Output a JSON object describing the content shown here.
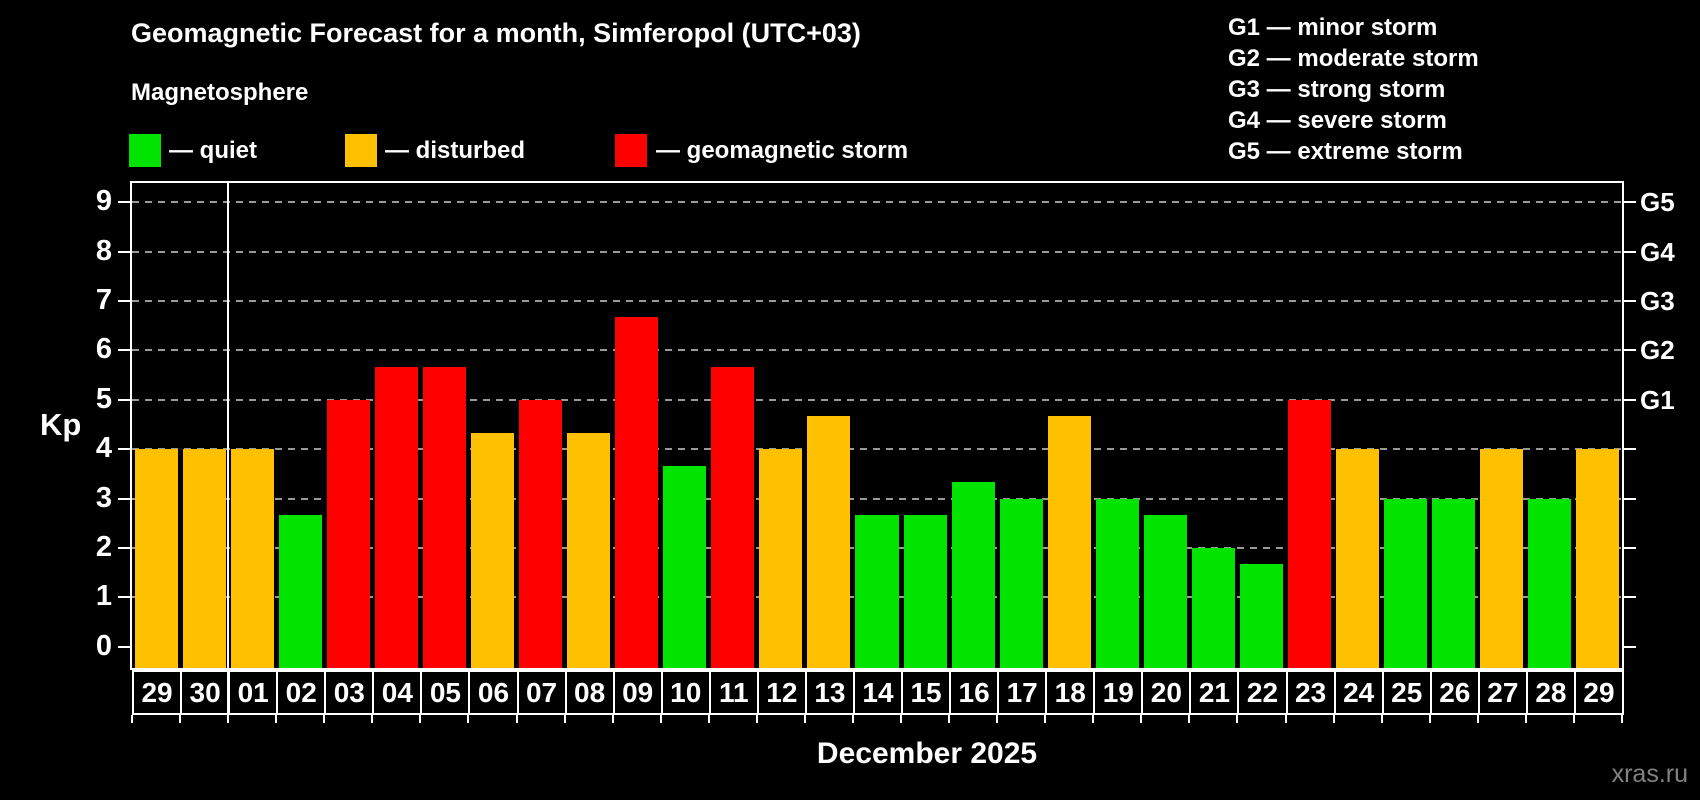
{
  "header": {
    "title": "Geomagnetic Forecast for a month, Simferopol (UTC+03)",
    "subtitle": "Magnetosphere"
  },
  "legend": {
    "items": [
      {
        "key": "quiet",
        "label": "— quiet",
        "color": "#00e400"
      },
      {
        "key": "disturbed",
        "label": "— disturbed",
        "color": "#ffc000"
      },
      {
        "key": "storm",
        "label": "— geomagnetic storm",
        "color": "#ff0000"
      }
    ]
  },
  "g_scale_legend": {
    "lines": [
      "G1 — minor storm",
      "G2 — moderate storm",
      "G3 — strong storm",
      "G4 — severe storm",
      "G5 — extreme storm"
    ]
  },
  "watermark": "xras.ru",
  "chart_data": {
    "type": "bar",
    "title": "Geomagnetic Forecast for a month, Simferopol (UTC+03)",
    "ylabel": "Kp",
    "xlabel": "December 2025",
    "ylim": [
      -0.43,
      9.39
    ],
    "grid": true,
    "legend_position": "top",
    "y_ticks": [
      0,
      1,
      2,
      3,
      4,
      5,
      6,
      7,
      8,
      9
    ],
    "right_axis_labels": [
      {
        "kp": 5,
        "label": "G1"
      },
      {
        "kp": 6,
        "label": "G2"
      },
      {
        "kp": 7,
        "label": "G3"
      },
      {
        "kp": 8,
        "label": "G4"
      },
      {
        "kp": 9,
        "label": "G5"
      }
    ],
    "month_separator_before_index": 2,
    "colors": {
      "quiet": "#00e400",
      "disturbed": "#ffc000",
      "storm": "#ff0000"
    },
    "categories": [
      "29",
      "30",
      "01",
      "02",
      "03",
      "04",
      "05",
      "06",
      "07",
      "08",
      "09",
      "10",
      "11",
      "12",
      "13",
      "14",
      "15",
      "16",
      "17",
      "18",
      "19",
      "20",
      "21",
      "22",
      "23",
      "24",
      "25",
      "26",
      "27",
      "28",
      "29"
    ],
    "values": [
      4.0,
      4.0,
      4.0,
      2.67,
      5.0,
      5.67,
      5.67,
      4.33,
      5.0,
      4.33,
      6.67,
      3.67,
      5.67,
      4.0,
      4.67,
      2.67,
      2.67,
      3.33,
      3.0,
      4.67,
      3.0,
      2.67,
      2.0,
      1.67,
      5.0,
      4.0,
      3.0,
      3.0,
      4.0,
      3.0,
      4.0
    ],
    "statuses": [
      "disturbed",
      "disturbed",
      "disturbed",
      "quiet",
      "storm",
      "storm",
      "storm",
      "disturbed",
      "storm",
      "disturbed",
      "storm",
      "quiet",
      "storm",
      "disturbed",
      "disturbed",
      "quiet",
      "quiet",
      "quiet",
      "quiet",
      "disturbed",
      "quiet",
      "quiet",
      "quiet",
      "quiet",
      "storm",
      "disturbed",
      "quiet",
      "quiet",
      "disturbed",
      "quiet",
      "disturbed"
    ]
  }
}
